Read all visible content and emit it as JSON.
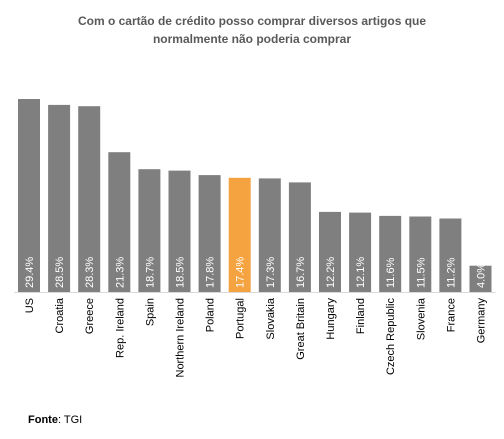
{
  "chart_data": {
    "type": "bar",
    "title_lines": [
      "Com o cartão de crédito posso comprar diversos artigos que",
      "normalmente não poderia comprar"
    ],
    "categories": [
      "US",
      "Croatia",
      "Greece",
      "Rep. Ireland",
      "Spain",
      "Northern Ireland",
      "Poland",
      "Portugal",
      "Slovakia",
      "Great Britain",
      "Hungary",
      "Finland",
      "Czech Republic",
      "Slovenia",
      "France",
      "Germany"
    ],
    "values": [
      29.4,
      28.5,
      28.3,
      21.3,
      18.7,
      18.5,
      17.8,
      17.4,
      17.3,
      16.7,
      12.2,
      12.1,
      11.6,
      11.5,
      11.2,
      4.0
    ],
    "value_labels": [
      "29.4%",
      "28.5%",
      "28.3%",
      "21.3%",
      "18.7%",
      "18.5%",
      "17.8%",
      "17.4%",
      "17.3%",
      "16.7%",
      "12.2%",
      "12.1%",
      "11.6%",
      "11.5%",
      "11.2%",
      "4.0%"
    ],
    "highlight": "Portugal",
    "colors": {
      "default": "#7f7f7f",
      "highlight": "#f4a340",
      "label": "#ffffff"
    },
    "ylim": [
      0,
      30
    ],
    "grid": false,
    "legend": "none"
  },
  "source": {
    "label": "Fonte",
    "text": "TGI"
  }
}
